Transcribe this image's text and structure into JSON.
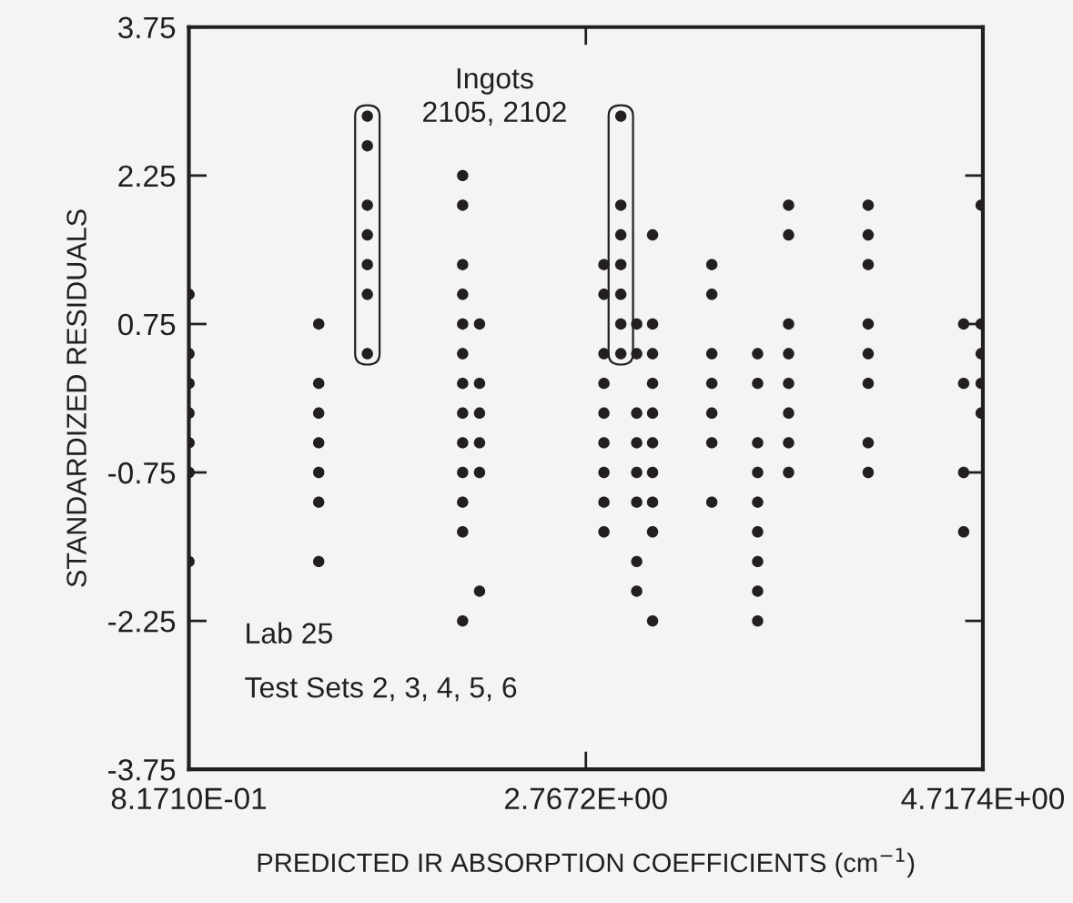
{
  "chart_data": {
    "type": "scatter",
    "xlabel": "PREDICTED IR ABSORPTION COEFFICIENTS (cm$^{−1}$)",
    "ylabel": "STANDARDIZED RESIDUALS",
    "xlim": [
      0.8171,
      4.7174
    ],
    "ylim": [
      -3.75,
      3.75
    ],
    "xticks": [
      {
        "value": 0.8171,
        "label": "8.1710E-01"
      },
      {
        "value": 2.7672,
        "label": "2.7672E+00"
      },
      {
        "value": 4.7174,
        "label": "4.7174E+00"
      }
    ],
    "yticks": [
      {
        "value": -3.75,
        "label": "-3.75"
      },
      {
        "value": -2.25,
        "label": "-2.25"
      },
      {
        "value": -0.75,
        "label": "-0.75"
      },
      {
        "value": 0.75,
        "label": "0.75"
      },
      {
        "value": 2.25,
        "label": "2.25"
      },
      {
        "value": 3.75,
        "label": "3.75"
      }
    ],
    "grid": false,
    "legend": false,
    "marker": "circle",
    "annotations": [
      "Ingots\n2105, 2102",
      "Lab 25",
      "Test Sets 2, 3, 4, 5, 6"
    ],
    "series": [
      {
        "color": "#231f20",
        "x": [
          0.818,
          0.818,
          0.818,
          0.818,
          0.818,
          0.818,
          0.818,
          1.455,
          1.455,
          1.455,
          1.455,
          1.455,
          1.455,
          1.455,
          2.162,
          2.162,
          2.162,
          2.162,
          2.162,
          2.162,
          2.162,
          2.162,
          2.162,
          2.162,
          2.162,
          2.162,
          2.162,
          2.245,
          2.245,
          2.245,
          2.245,
          2.245,
          2.245,
          2.856,
          2.856,
          2.856,
          2.856,
          2.856,
          2.856,
          2.856,
          2.856,
          2.856,
          3.017,
          3.017,
          3.017,
          3.017,
          3.017,
          3.017,
          3.017,
          3.017,
          3.095,
          3.095,
          3.095,
          3.095,
          3.095,
          3.095,
          3.095,
          3.095,
          3.095,
          3.095,
          3.386,
          3.386,
          3.386,
          3.386,
          3.386,
          3.386,
          3.386,
          3.611,
          3.611,
          3.611,
          3.611,
          3.611,
          3.611,
          3.611,
          3.611,
          3.611,
          3.763,
          3.763,
          3.763,
          3.763,
          3.763,
          3.763,
          3.763,
          3.763,
          4.154,
          4.154,
          4.154,
          4.154,
          4.154,
          4.154,
          4.154,
          4.154,
          4.623,
          4.623,
          4.623,
          4.623,
          4.709,
          4.709,
          4.709,
          4.709,
          4.709
        ],
        "values": [
          1.05,
          0.45,
          0.15,
          -0.15,
          -0.45,
          -0.75,
          -1.65,
          0.75,
          0.15,
          -0.15,
          -0.45,
          -0.75,
          -1.05,
          -1.65,
          2.25,
          1.95,
          1.35,
          1.05,
          0.75,
          0.45,
          0.15,
          -0.15,
          -0.45,
          -0.75,
          -1.05,
          -1.35,
          -2.25,
          0.75,
          0.15,
          -0.15,
          -0.45,
          -0.75,
          -1.95,
          1.35,
          1.05,
          0.45,
          0.15,
          -0.15,
          -0.45,
          -0.75,
          -1.05,
          -1.35,
          0.75,
          0.45,
          -0.15,
          -0.45,
          -0.75,
          -1.05,
          -1.65,
          -1.95,
          1.65,
          0.75,
          0.45,
          0.15,
          -0.15,
          -0.45,
          -0.75,
          -1.05,
          -1.35,
          -2.25,
          1.35,
          1.05,
          0.45,
          0.15,
          -0.15,
          -0.45,
          -1.05,
          0.45,
          0.15,
          -0.45,
          -0.75,
          -1.05,
          -1.35,
          -1.65,
          -1.95,
          -2.25,
          1.95,
          1.65,
          0.75,
          0.45,
          0.15,
          -0.15,
          -0.45,
          -0.75,
          1.95,
          1.65,
          1.35,
          0.75,
          0.45,
          0.15,
          -0.45,
          -0.75,
          0.75,
          0.15,
          -0.75,
          -1.35,
          1.95,
          0.75,
          0.45,
          0.15,
          -0.15
        ]
      },
      {
        "color": "#231f20",
        "x": [
          1.694,
          1.694,
          1.694,
          1.694,
          1.694,
          1.694,
          1.694
        ],
        "values": [
          2.85,
          2.55,
          1.95,
          1.65,
          1.35,
          1.05,
          0.45
        ]
      },
      {
        "color": "#231f20",
        "x": [
          2.939,
          2.939,
          2.939,
          2.939,
          2.939,
          2.939,
          2.939
        ],
        "values": [
          2.85,
          1.95,
          1.65,
          1.35,
          1.05,
          0.75,
          0.45
        ]
      }
    ]
  }
}
